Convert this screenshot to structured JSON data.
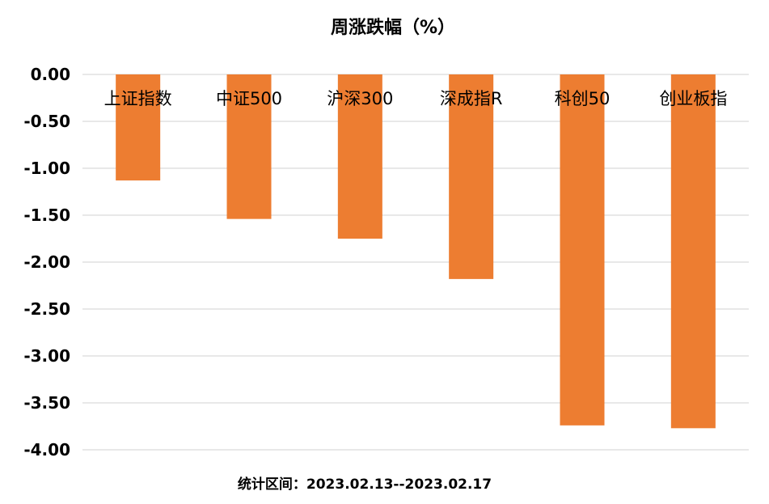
{
  "chart_data": {
    "type": "bar",
    "title": "周涨跌幅（%）",
    "categories": [
      "上证指数",
      "中证500",
      "沪深300",
      "深成指R",
      "科创50",
      "创业板指"
    ],
    "values": [
      -1.13,
      -1.54,
      -1.75,
      -2.18,
      -3.74,
      -3.77
    ],
    "ylim": [
      -4.0,
      0.0
    ],
    "yticks": [
      "0.00",
      "-0.50",
      "-1.00",
      "-1.50",
      "-2.00",
      "-2.50",
      "-3.00",
      "-3.50",
      "-4.00"
    ],
    "grid": true,
    "bar_color": "#ed7d31",
    "annotation": "统计区间：2023.02.13--2023.02.17"
  }
}
